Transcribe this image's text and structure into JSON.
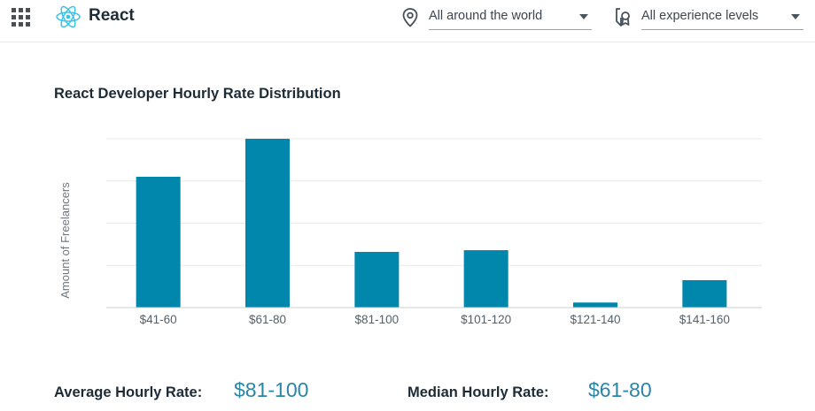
{
  "header": {
    "app_name": "React",
    "apps_icon": "grid-apps-icon",
    "logo_icon": "react-atom-icon",
    "location_filter": {
      "icon": "location-pin-icon",
      "value": "All around the world"
    },
    "experience_filter": {
      "icon": "experience-badge-icon",
      "value": "All experience levels"
    }
  },
  "chart_title": "React Developer Hourly Rate Distribution",
  "chart_data": {
    "type": "bar",
    "title": "React Developer Hourly Rate Distribution",
    "xlabel": "",
    "ylabel": "Amount of Freelancers",
    "categories": [
      "$41-60",
      "$61-80",
      "$81-100",
      "$101-120",
      "$121-140",
      "$141-160"
    ],
    "values": [
      31,
      40,
      13.2,
      13.6,
      1.2,
      6.5
    ],
    "ylim": [
      0,
      40
    ],
    "grid": true,
    "bar_color": "#0087ab",
    "gridline_color": "#e8e8e8"
  },
  "stats": {
    "average_label": "Average Hourly Rate:",
    "average_value": "$81-100",
    "median_label": "Median Hourly Rate:",
    "median_value": "$61-80"
  },
  "colors": {
    "accent": "#2a86a8",
    "react": "#3ac3e6",
    "text": "#1d2b36"
  }
}
